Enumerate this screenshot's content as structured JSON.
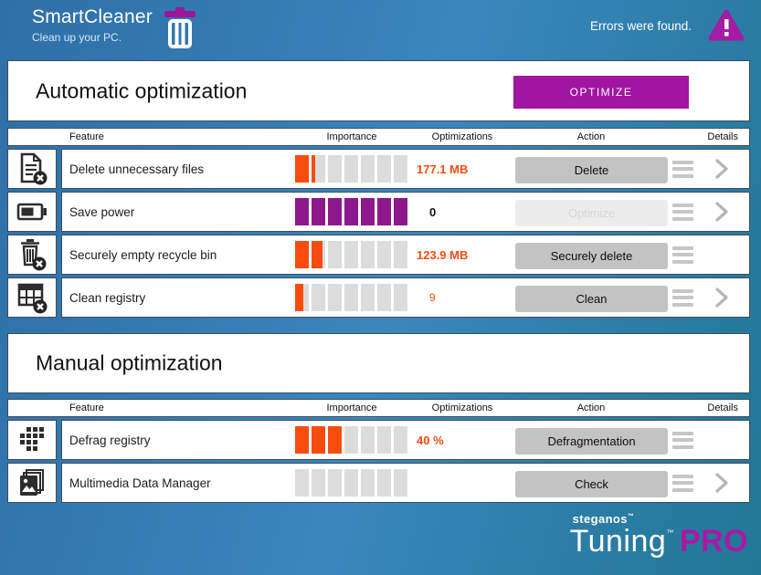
{
  "header": {
    "app_name": "SmartCleaner",
    "tagline": "Clean up your PC.",
    "status": "Errors were found."
  },
  "sections": [
    {
      "title": "Automatic optimization",
      "button_label": "OPTIMIZE",
      "columns": [
        "Feature",
        "Importance",
        "Optimizations",
        "Action",
        "Details"
      ],
      "rows": [
        {
          "feature": "Delete unnecessary files",
          "icon": "delete-files-icon",
          "importance": {
            "color": "orange",
            "fills": [
              1,
              0.25,
              0,
              0,
              0,
              0,
              0
            ]
          },
          "value": "177.1 MB",
          "value_style": "orange-bold",
          "action": {
            "label": "Delete",
            "enabled": true
          },
          "details": true
        },
        {
          "feature": "Save power",
          "icon": "battery-icon",
          "importance": {
            "color": "purple",
            "fills": [
              1,
              1,
              1,
              1,
              1,
              1,
              1
            ]
          },
          "value": "0",
          "value_style": "dark-bold",
          "action": {
            "label": "Optimize",
            "enabled": false
          },
          "details": true
        },
        {
          "feature": "Securely empty recycle bin",
          "icon": "recycle-bin-icon",
          "importance": {
            "color": "orange",
            "fills": [
              1,
              0.8,
              0,
              0,
              0,
              0,
              0
            ]
          },
          "value": "123.9 MB",
          "value_style": "orange-bold",
          "action": {
            "label": "Securely delete",
            "enabled": true
          },
          "details": false
        },
        {
          "feature": "Clean registry",
          "icon": "registry-icon",
          "importance": {
            "color": "orange",
            "fills": [
              0.6,
              0,
              0,
              0,
              0,
              0,
              0
            ]
          },
          "value": "9",
          "value_style": "orange-small",
          "action": {
            "label": "Clean",
            "enabled": true
          },
          "details": true
        }
      ]
    },
    {
      "title": "Manual optimization",
      "button_label": "",
      "columns": [
        "Feature",
        "Importance",
        "Optimizations",
        "Action",
        "Details"
      ],
      "rows": [
        {
          "feature": "Defrag registry",
          "icon": "defrag-icon",
          "importance": {
            "color": "orange",
            "fills": [
              1,
              1,
              1,
              0,
              0,
              0,
              0
            ]
          },
          "value": "40 %",
          "value_style": "orange-bold",
          "action": {
            "label": "Defragmentation",
            "enabled": true
          },
          "details": false
        },
        {
          "feature": "Multimedia Data Manager",
          "icon": "multimedia-icon",
          "importance": {
            "color": "gray",
            "fills": [
              0,
              0,
              0,
              0,
              0,
              0,
              0
            ]
          },
          "value": "",
          "value_style": "",
          "action": {
            "label": "Check",
            "enabled": true
          },
          "details": true
        }
      ]
    }
  ],
  "footer": {
    "brand": "steganos",
    "brand_mark": "™",
    "product": "Tuning",
    "product_mark": "™",
    "edition": "PRO"
  },
  "colors": {
    "accent_purple": "#a116a1",
    "importance_purple": "#8d188d",
    "accent_orange": "#f84b0e",
    "value_orange": "#f94b10",
    "segment_gray": "#dcdcdc",
    "button_gray": "#c3c3c3",
    "disabled_gray": "#ececec",
    "background_blue": "#3a86bd",
    "background_teal": "#217795",
    "pro_magenta": "#ab18a6"
  }
}
